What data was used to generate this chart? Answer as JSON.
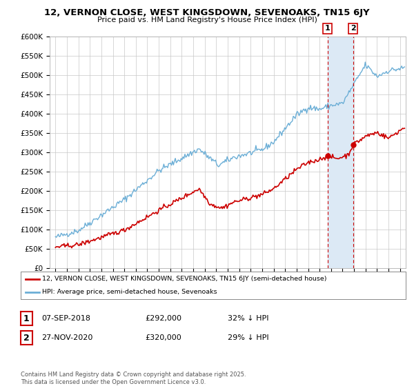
{
  "title": "12, VERNON CLOSE, WEST KINGSDOWN, SEVENOAKS, TN15 6JY",
  "subtitle": "Price paid vs. HM Land Registry's House Price Index (HPI)",
  "ylim": [
    0,
    600000
  ],
  "yticks": [
    0,
    50000,
    100000,
    150000,
    200000,
    250000,
    300000,
    350000,
    400000,
    450000,
    500000,
    550000,
    600000
  ],
  "ytick_labels": [
    "£0",
    "£50K",
    "£100K",
    "£150K",
    "£200K",
    "£250K",
    "£300K",
    "£350K",
    "£400K",
    "£450K",
    "£500K",
    "£550K",
    "£600K"
  ],
  "xlim_start": 1994.5,
  "xlim_end": 2025.5,
  "hpi_color": "#6baed6",
  "price_color": "#cc0000",
  "vline_color": "#cc0000",
  "shade_color": "#dce9f5",
  "marker1_date": 2018.69,
  "marker2_date": 2020.92,
  "marker1_price": 292000,
  "marker2_price": 320000,
  "legend_label_red": "12, VERNON CLOSE, WEST KINGSDOWN, SEVENOAKS, TN15 6JY (semi-detached house)",
  "legend_label_blue": "HPI: Average price, semi-detached house, Sevenoaks",
  "table_row1": [
    "1",
    "07-SEP-2018",
    "£292,000",
    "32% ↓ HPI"
  ],
  "table_row2": [
    "2",
    "27-NOV-2020",
    "£320,000",
    "29% ↓ HPI"
  ],
  "footer": "Contains HM Land Registry data © Crown copyright and database right 2025.\nThis data is licensed under the Open Government Licence v3.0.",
  "bg_color": "#ffffff",
  "plot_bg_color": "#ffffff",
  "grid_color": "#c8c8c8"
}
